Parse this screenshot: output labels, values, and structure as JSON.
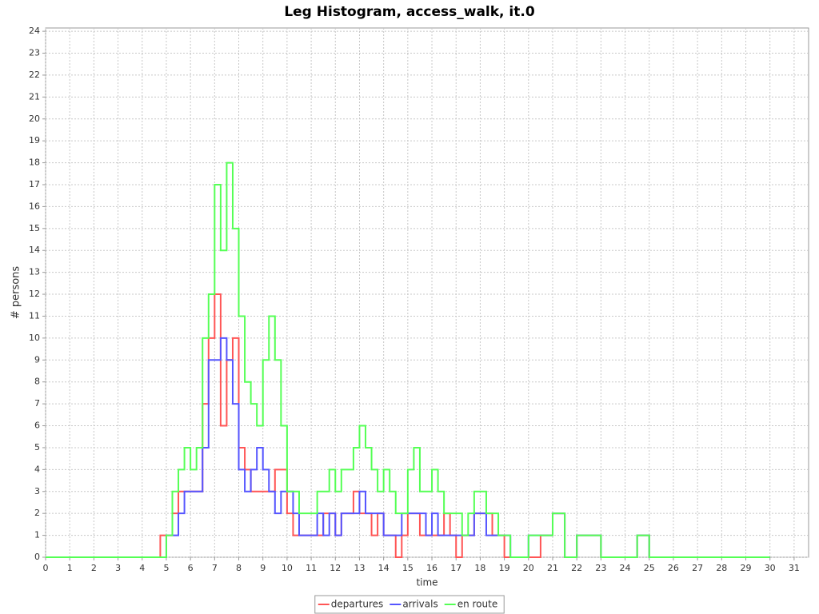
{
  "chart_data": {
    "type": "line",
    "title": "Leg Histogram, access_walk, it.0",
    "x_label": "time",
    "y_label": "# persons",
    "x": [
      0,
      4.75,
      5,
      5.25,
      5.5,
      5.75,
      6,
      6.25,
      6.5,
      6.75,
      7,
      7.25,
      7.5,
      7.75,
      8,
      8.25,
      8.5,
      8.75,
      9,
      9.25,
      9.5,
      9.75,
      10,
      10.25,
      10.5,
      10.75,
      11,
      11.25,
      11.5,
      11.75,
      12,
      12.25,
      12.5,
      12.75,
      13,
      13.25,
      13.5,
      13.75,
      14,
      14.25,
      14.5,
      14.75,
      15,
      15.25,
      15.5,
      15.75,
      16,
      16.25,
      16.5,
      16.75,
      17,
      17.25,
      17.5,
      17.75,
      18,
      18.25,
      18.5,
      18.75,
      19,
      19.25,
      19.5,
      20,
      20.5,
      21,
      21.5,
      22,
      22.5,
      23,
      24.5,
      25,
      30
    ],
    "series": [
      {
        "name": "departures",
        "color": "#ff5555",
        "values": [
          0,
          1,
          1,
          2,
          3,
          3,
          3,
          3,
          7,
          10,
          12,
          6,
          9,
          10,
          5,
          4,
          3,
          3,
          3,
          3,
          4,
          4,
          2,
          1,
          1,
          1,
          1,
          1,
          2,
          2,
          1,
          2,
          2,
          3,
          2,
          2,
          1,
          2,
          1,
          1,
          0,
          1,
          2,
          2,
          1,
          1,
          1,
          1,
          2,
          1,
          0,
          1,
          1,
          2,
          2,
          2,
          1,
          1,
          0,
          0,
          0,
          0,
          1,
          2,
          0,
          1,
          1,
          0,
          1,
          0,
          0
        ]
      },
      {
        "name": "arrivals",
        "color": "#5555ff",
        "values": [
          0,
          0,
          1,
          1,
          2,
          3,
          3,
          3,
          5,
          9,
          9,
          10,
          9,
          7,
          4,
          3,
          4,
          5,
          4,
          3,
          2,
          3,
          3,
          2,
          1,
          1,
          1,
          2,
          1,
          2,
          1,
          2,
          2,
          2,
          3,
          2,
          2,
          2,
          1,
          1,
          1,
          2,
          2,
          2,
          2,
          1,
          2,
          1,
          1,
          1,
          1,
          1,
          1,
          2,
          2,
          1,
          1,
          1,
          1,
          0,
          0,
          1,
          1,
          2,
          0,
          1,
          1,
          0,
          1,
          0,
          0
        ]
      },
      {
        "name": "en route",
        "color": "#55ff55",
        "values": [
          0,
          0,
          1,
          3,
          4,
          5,
          4,
          5,
          10,
          12,
          17,
          14,
          18,
          15,
          11,
          8,
          7,
          6,
          9,
          11,
          9,
          6,
          3,
          3,
          2,
          2,
          2,
          3,
          3,
          4,
          3,
          4,
          4,
          5,
          6,
          5,
          4,
          3,
          4,
          3,
          2,
          2,
          4,
          5,
          3,
          3,
          4,
          3,
          2,
          2,
          2,
          1,
          2,
          3,
          3,
          2,
          2,
          1,
          1,
          0,
          0,
          1,
          1,
          2,
          0,
          1,
          1,
          0,
          1,
          0,
          0
        ]
      }
    ],
    "xlim": [
      0,
      31.6
    ],
    "ylim": [
      0,
      24.15
    ],
    "xticks": [
      0,
      1,
      2,
      3,
      4,
      5,
      6,
      7,
      8,
      9,
      10,
      11,
      12,
      13,
      14,
      15,
      16,
      17,
      18,
      19,
      20,
      21,
      22,
      23,
      24,
      25,
      26,
      27,
      28,
      29,
      30,
      31
    ],
    "yticks": [
      0,
      1,
      2,
      3,
      4,
      5,
      6,
      7,
      8,
      9,
      10,
      11,
      12,
      13,
      14,
      15,
      16,
      17,
      18,
      19,
      20,
      21,
      22,
      23,
      24
    ],
    "grid": true,
    "legend": "bottom"
  }
}
